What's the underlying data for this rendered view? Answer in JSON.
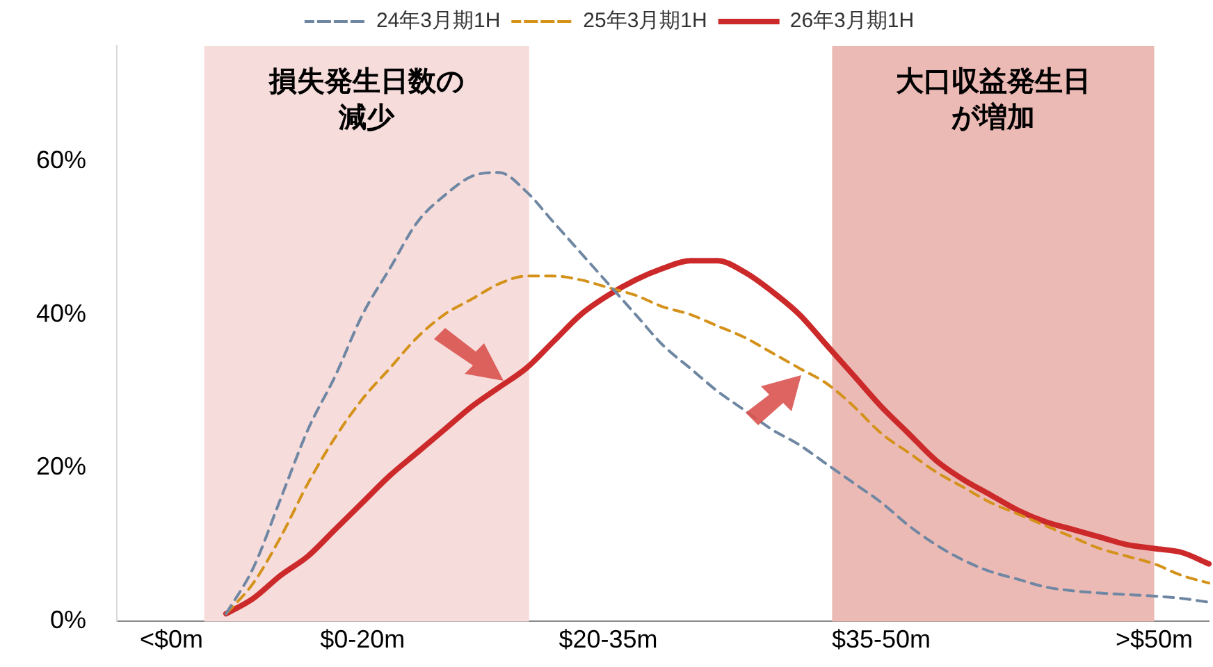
{
  "chart_data": {
    "type": "line",
    "categories": [
      null,
      null,
      "<$0m",
      null,
      null,
      null,
      null,
      null,
      null,
      "$0-20m",
      null,
      null,
      null,
      null,
      null,
      null,
      null,
      null,
      "$20-35m",
      null,
      null,
      null,
      null,
      null,
      null,
      null,
      null,
      null,
      "$35-50m",
      null,
      null,
      null,
      null,
      null,
      null,
      null,
      null,
      null,
      ">$50m",
      null,
      null
    ],
    "series": [
      {
        "name": "24年3月期1H",
        "color": "#6f87a3",
        "line_style": "dashed",
        "values": [
          null,
          null,
          null,
          null,
          1,
          7,
          16,
          25,
          32,
          40,
          46,
          52,
          55.5,
          58,
          58.5,
          56,
          52,
          48,
          44,
          40,
          36,
          33,
          30,
          27.5,
          25,
          23,
          20.5,
          18,
          15.5,
          12.5,
          10,
          8,
          6.5,
          5.5,
          4.5,
          4,
          3.7,
          3.5,
          3.3,
          3,
          2.5
        ]
      },
      {
        "name": "25年3月期1H",
        "color": "#d4921a",
        "line_style": "dashed",
        "values": [
          null,
          null,
          null,
          null,
          1,
          5,
          11,
          18,
          24,
          29,
          33,
          37,
          40,
          42,
          44,
          45,
          45,
          44.5,
          43.5,
          42.5,
          41,
          40,
          38.5,
          37,
          35,
          33,
          31,
          28,
          24.5,
          22,
          19.5,
          17.5,
          15.5,
          14,
          12.5,
          11,
          9.5,
          8.5,
          7.5,
          6,
          5
        ]
      },
      {
        "name": "26年3月期1H",
        "color": "#cc2a2a",
        "line_style": "solid",
        "values": [
          null,
          null,
          null,
          null,
          1,
          3,
          6,
          8.5,
          12,
          15.5,
          19,
          22,
          25,
          28,
          30.5,
          33,
          36.5,
          40,
          42.5,
          44.5,
          46,
          47,
          47,
          45.5,
          43,
          40,
          36,
          32,
          28,
          24.5,
          21,
          18.5,
          16.5,
          14.5,
          13,
          12,
          11,
          10,
          9.5,
          9,
          7.5
        ]
      }
    ],
    "ylim": [
      0,
      75
    ],
    "yticks": [
      {
        "value": 0,
        "label": "0%"
      },
      {
        "value": 20,
        "label": "20%"
      },
      {
        "value": 40,
        "label": "40%"
      },
      {
        "value": 60,
        "label": "60%"
      }
    ],
    "annotations": [
      "損失発生日数の減少",
      "大口収益発生日が増加"
    ],
    "grid": false,
    "legend": "top",
    "marker": "none"
  }
}
